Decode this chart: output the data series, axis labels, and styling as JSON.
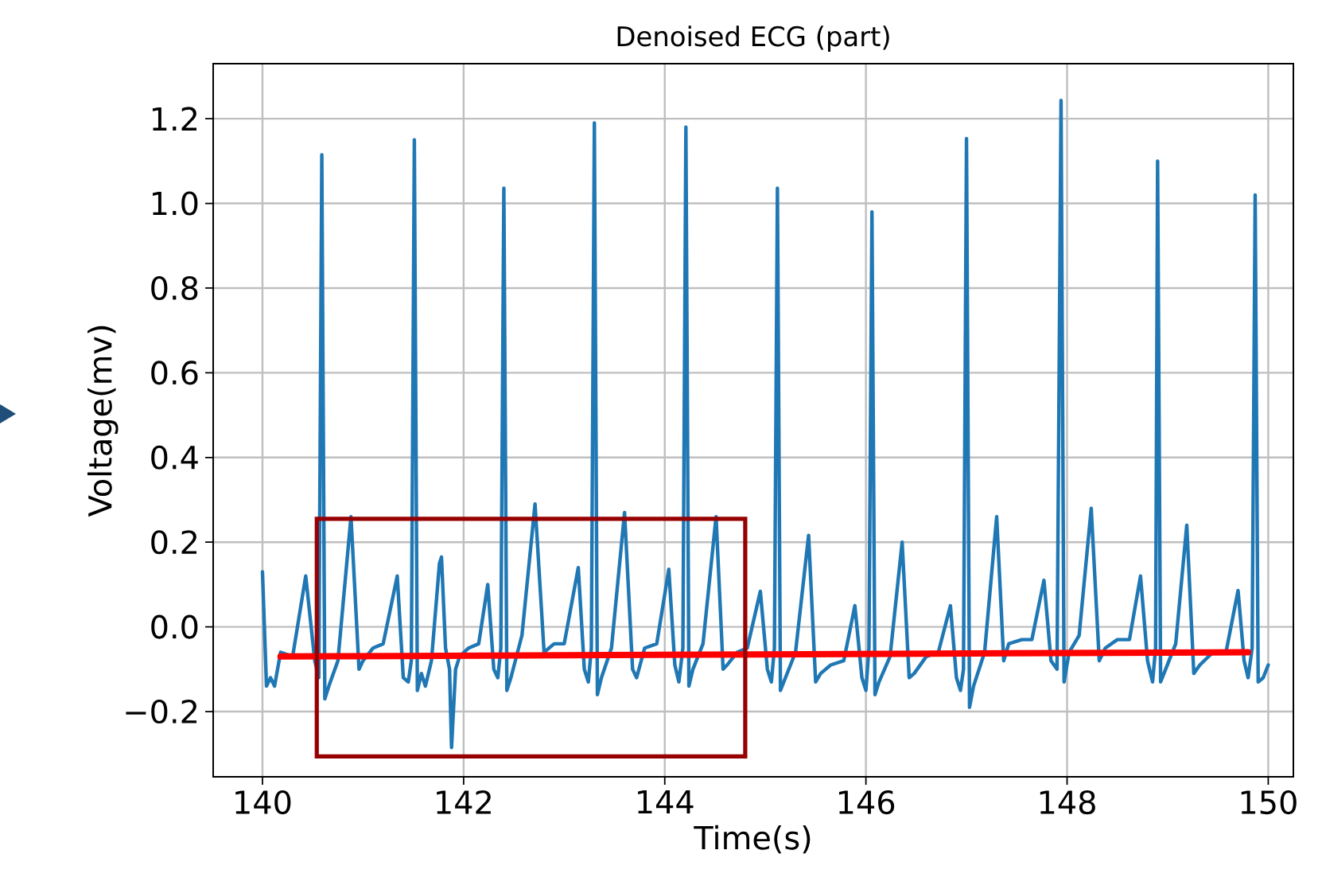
{
  "chart_data": {
    "type": "line",
    "title": "Denoised ECG (part)",
    "xlabel": "Time(s)",
    "ylabel": "Voltage(mv)",
    "xlim": [
      139.51,
      150.25
    ],
    "ylim": [
      -0.354,
      1.33
    ],
    "xticks": [
      140,
      142,
      144,
      146,
      148,
      150
    ],
    "yticks": [
      {
        "value": -0.2,
        "label": "−0.2"
      },
      {
        "value": 0,
        "label": "0.0"
      },
      {
        "value": 0.2,
        "label": "0.2"
      },
      {
        "value": 0.4,
        "label": "0.4"
      },
      {
        "value": 0.6,
        "label": "0.6"
      },
      {
        "value": 0.8,
        "label": "0.8"
      },
      {
        "value": 1.0,
        "label": "1.0"
      },
      {
        "value": 1.2,
        "label": "1.2"
      }
    ],
    "grid": true,
    "series": [
      {
        "color": "#1f77b4",
        "x": [
          140.0,
          140.04,
          140.08,
          140.12,
          140.18,
          140.3,
          140.43,
          140.52,
          140.56,
          140.59,
          140.62,
          140.66,
          140.75,
          140.88,
          140.96,
          141.0,
          141.1,
          141.2,
          141.34,
          141.4,
          141.45,
          141.48,
          141.51,
          141.54,
          141.58,
          141.62,
          141.68,
          141.76,
          141.78,
          141.82,
          141.86,
          141.88,
          141.92,
          141.96,
          142.05,
          142.15,
          142.24,
          142.3,
          142.34,
          142.37,
          142.4,
          142.43,
          142.47,
          142.58,
          142.71,
          142.8,
          142.9,
          143.0,
          143.14,
          143.2,
          143.24,
          143.27,
          143.3,
          143.33,
          143.37,
          143.47,
          143.6,
          143.68,
          143.72,
          143.8,
          143.92,
          144.04,
          144.1,
          144.14,
          144.18,
          144.21,
          144.24,
          144.28,
          144.38,
          144.51,
          144.58,
          144.62,
          144.72,
          144.82,
          144.95,
          145.02,
          145.06,
          145.09,
          145.12,
          145.15,
          145.2,
          145.3,
          145.43,
          145.5,
          145.55,
          145.65,
          145.78,
          145.89,
          145.96,
          146.0,
          146.03,
          146.06,
          146.09,
          146.13,
          146.24,
          146.36,
          146.43,
          146.48,
          146.6,
          146.72,
          146.84,
          146.9,
          146.94,
          146.97,
          147.0,
          147.03,
          147.07,
          147.18,
          147.3,
          147.37,
          147.42,
          147.55,
          147.65,
          147.77,
          147.84,
          147.9,
          147.94,
          147.97,
          148.02,
          148.12,
          148.24,
          148.32,
          148.38,
          148.5,
          148.62,
          148.73,
          148.8,
          148.85,
          148.88,
          148.9,
          148.93,
          148.98,
          149.08,
          149.19,
          149.26,
          149.32,
          149.45,
          149.58,
          149.7,
          149.76,
          149.8,
          149.84,
          149.87,
          149.9,
          149.95,
          150.0
        ],
        "values": [
          0.13,
          -0.14,
          -0.12,
          -0.14,
          -0.06,
          -0.07,
          0.12,
          -0.08,
          -0.12,
          1.115,
          -0.17,
          -0.14,
          -0.08,
          0.26,
          -0.1,
          -0.08,
          -0.05,
          -0.04,
          0.12,
          -0.12,
          -0.13,
          -0.08,
          1.15,
          -0.15,
          -0.11,
          -0.14,
          -0.08,
          0.15,
          0.165,
          -0.05,
          -0.1,
          -0.285,
          -0.1,
          -0.07,
          -0.05,
          -0.04,
          0.1,
          -0.1,
          -0.12,
          -0.05,
          1.036,
          -0.15,
          -0.12,
          -0.02,
          0.29,
          -0.06,
          -0.04,
          -0.04,
          0.14,
          -0.1,
          -0.13,
          -0.05,
          1.19,
          -0.16,
          -0.12,
          -0.05,
          0.27,
          -0.1,
          -0.12,
          -0.05,
          -0.04,
          0.136,
          -0.09,
          -0.13,
          -0.05,
          1.18,
          -0.14,
          -0.1,
          -0.04,
          0.26,
          -0.1,
          -0.09,
          -0.06,
          -0.05,
          0.084,
          -0.1,
          -0.13,
          -0.05,
          1.036,
          -0.15,
          -0.12,
          -0.06,
          0.216,
          -0.13,
          -0.11,
          -0.09,
          -0.08,
          0.05,
          -0.12,
          -0.15,
          -0.05,
          0.98,
          -0.16,
          -0.13,
          -0.07,
          0.2,
          -0.12,
          -0.11,
          -0.07,
          -0.06,
          0.05,
          -0.12,
          -0.15,
          -0.1,
          1.153,
          -0.19,
          -0.14,
          -0.06,
          0.26,
          -0.08,
          -0.04,
          -0.03,
          -0.03,
          0.11,
          -0.08,
          -0.1,
          1.243,
          -0.13,
          -0.06,
          -0.02,
          0.28,
          -0.08,
          -0.05,
          -0.03,
          -0.03,
          0.12,
          -0.08,
          -0.13,
          -0.05,
          1.1,
          -0.13,
          -0.1,
          -0.04,
          0.24,
          -0.11,
          -0.09,
          -0.06,
          -0.06,
          0.086,
          -0.08,
          -0.12,
          -0.05,
          1.02,
          -0.13,
          -0.12,
          -0.09
        ]
      },
      {
        "type": "line",
        "color": "#ff0000",
        "x": [
          140.18,
          149.8
        ],
        "values": [
          -0.07,
          -0.06
        ]
      }
    ]
  }
}
